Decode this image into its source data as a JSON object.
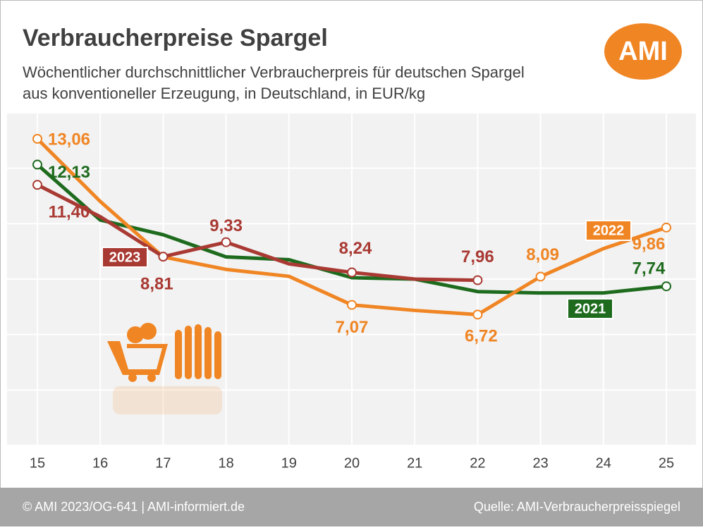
{
  "chart_data": {
    "type": "line",
    "title": "Verbraucherpreise Spargel",
    "subtitle": [
      "Wöchentlicher durchschnittlicher Verbraucherpreis für deutschen Spargel",
      "aus konventioneller Erzeugung, in Deutschland, in EUR/kg"
    ],
    "logo": "AMI",
    "footer_left": "© AMI 2023/OG-641 | AMI-informiert.de",
    "footer_right": "Quelle: AMI-Verbraucherpreisspiegel",
    "categories": [
      "15",
      "16",
      "17",
      "18",
      "19",
      "20",
      "21",
      "22",
      "23",
      "24",
      "25"
    ],
    "ylim": [
      2,
      14
    ],
    "yticks": [
      2,
      4,
      6,
      8,
      10,
      12,
      14
    ],
    "grid": true,
    "series": [
      {
        "name": "2021",
        "color": "#1e6b1e",
        "values": [
          12.13,
          10.13,
          9.6,
          8.8,
          8.7,
          8.05,
          8.0,
          7.55,
          7.5,
          7.5,
          7.74
        ],
        "value_labels": [
          "12,13",
          null,
          null,
          null,
          null,
          null,
          null,
          null,
          null,
          null,
          "7,74"
        ]
      },
      {
        "name": "2022",
        "color": "#f08524",
        "values": [
          13.06,
          10.8,
          8.8,
          8.35,
          8.1,
          7.07,
          6.87,
          6.72,
          8.09,
          9.1,
          9.86
        ],
        "value_labels": [
          "13,06",
          null,
          null,
          null,
          null,
          "7,07",
          null,
          "6,72",
          "8,09",
          null,
          "9,86"
        ]
      },
      {
        "name": "2023",
        "color": "#a93a33",
        "values": [
          11.4,
          10.25,
          8.81,
          9.33,
          8.55,
          8.24,
          8.0,
          7.96,
          null,
          null,
          null
        ],
        "value_labels": [
          "11,40",
          null,
          "8,81",
          "9,33",
          null,
          "8,24",
          null,
          "7,96",
          null,
          null,
          null
        ]
      }
    ]
  }
}
